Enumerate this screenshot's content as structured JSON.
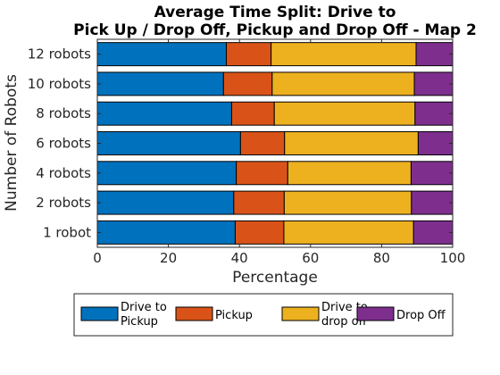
{
  "chart_data": {
    "type": "bar",
    "orientation": "horizontal",
    "stacked": true,
    "title": [
      "Average Time Split: Drive to",
      "Pick Up / Drop Off, Pickup and Drop Off - Map 2"
    ],
    "xlabel": "Percentage",
    "ylabel": "Number of Robots",
    "xlim": [
      0,
      100
    ],
    "xticks": [
      0,
      20,
      40,
      60,
      80,
      100
    ],
    "categories": [
      "12 robots",
      "10 robots",
      "8 robots",
      "6 robots",
      "4 robots",
      "2 robots",
      "1 robot"
    ],
    "series": [
      {
        "name": [
          "Drive to",
          "Pickup"
        ],
        "color": "#0072BD",
        "values": [
          36.3,
          35.5,
          37.8,
          40.3,
          39.1,
          38.4,
          38.8
        ]
      },
      {
        "name": [
          "Pickup"
        ],
        "color": "#D95319",
        "values": [
          12.6,
          13.7,
          12.0,
          12.4,
          14.5,
          14.2,
          13.7
        ]
      },
      {
        "name": [
          "Drive to",
          "drop off"
        ],
        "color": "#EDB120",
        "values": [
          40.8,
          40.0,
          39.6,
          37.6,
          34.7,
          35.8,
          36.5
        ]
      },
      {
        "name": [
          "Drop Off"
        ],
        "color": "#7E2F8E",
        "values": [
          10.3,
          10.8,
          10.6,
          9.7,
          11.7,
          11.6,
          11.0
        ]
      }
    ],
    "legend_position": "bottom",
    "grid": false
  }
}
